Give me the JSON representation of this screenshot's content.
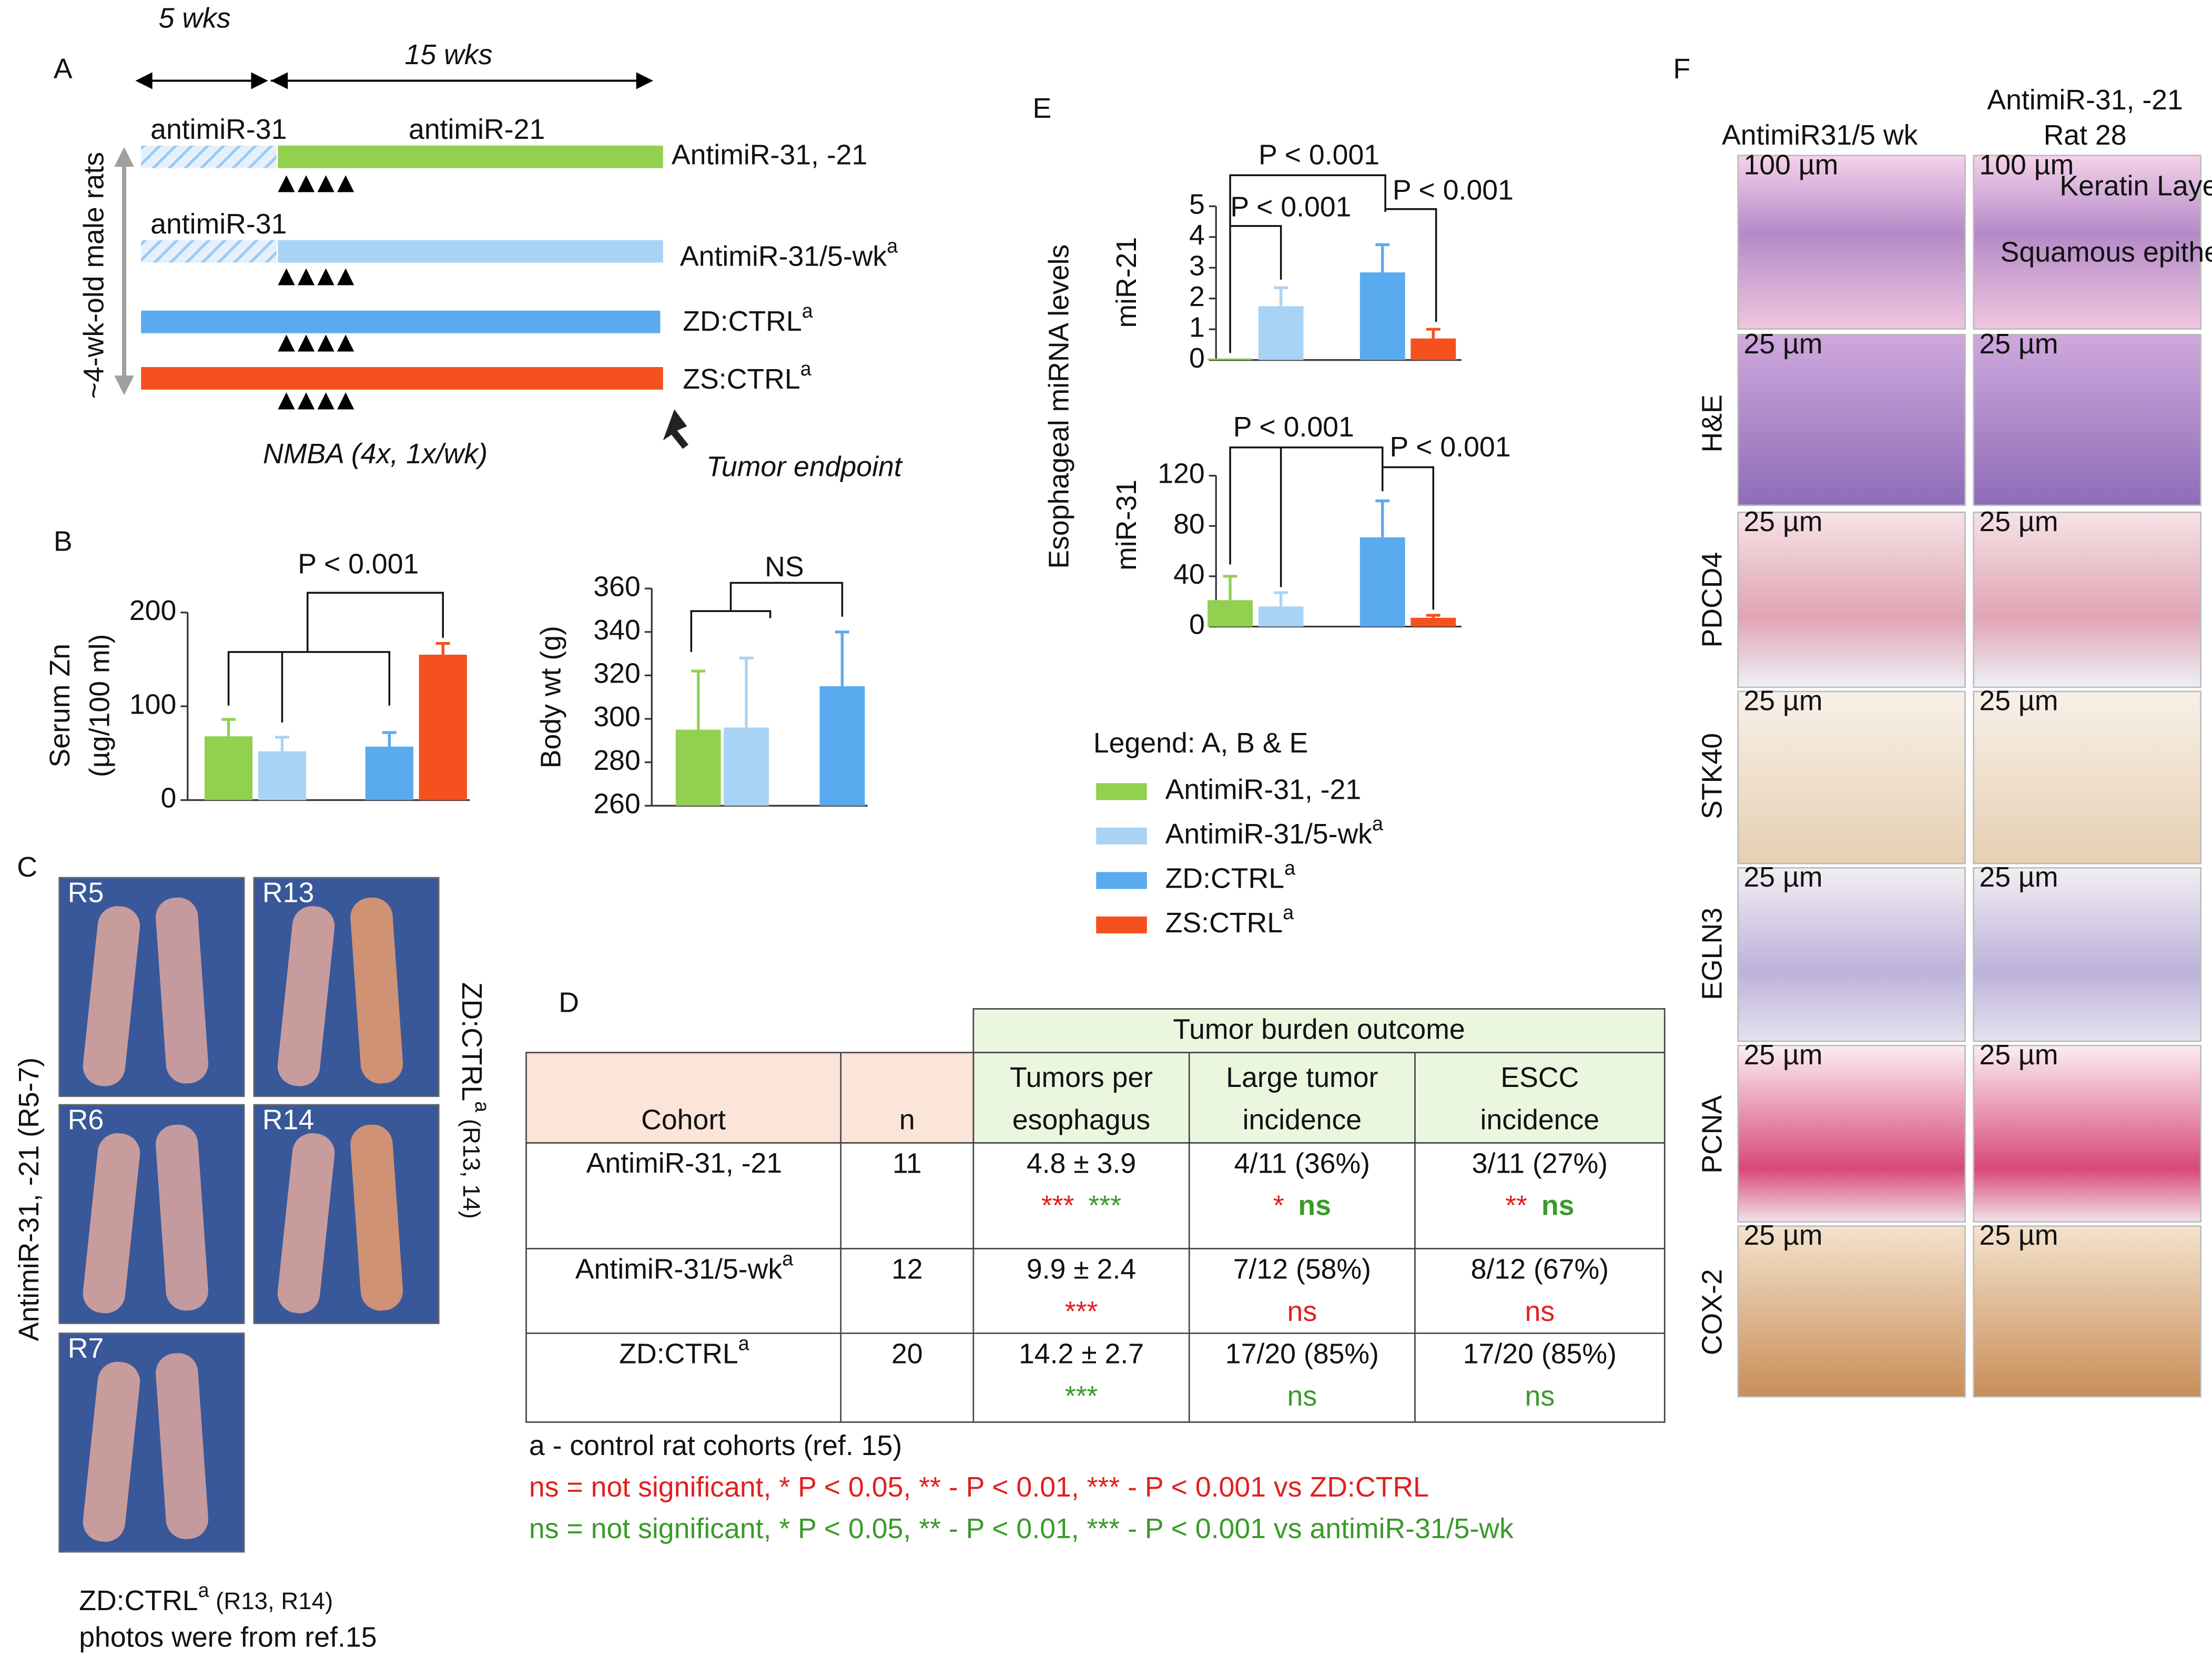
{
  "panel_labels": [
    "A",
    "B",
    "C",
    "D",
    "E",
    "F"
  ],
  "timeline": {
    "durations": [
      "5 wks",
      "15 wks"
    ],
    "bar_labels": [
      "antimiR-31",
      "antimiR-21",
      "antimiR-31"
    ],
    "groups": [
      {
        "text": "AntimiR-31, -21"
      },
      {
        "text": "AntimiR-31/5-wk",
        "sup": "a"
      },
      {
        "text": "ZD:CTRL",
        "sup": "a"
      },
      {
        "text": "ZS:CTRL",
        "sup": "a"
      }
    ],
    "y_label": "~4-wk-old male rats",
    "treatment": "NMBA (4x, 1x/wk)",
    "endpoint": "Tumor endpoint"
  },
  "legend": {
    "title": "Legend: A, B & E",
    "items": [
      {
        "text": "AntimiR-31, -21",
        "color": "#92d050"
      },
      {
        "text": "AntimiR-31/5-wk",
        "sup": "a",
        "color": "#a9d3f5"
      },
      {
        "text": "ZD:CTRL",
        "sup": "a",
        "color": "#5aaaf0"
      },
      {
        "text": "ZS:CTRL",
        "sup": "a",
        "color": "#f4511e"
      }
    ]
  },
  "chart_data": [
    {
      "type": "bar",
      "ylabel": [
        "Serum  Zn",
        "(µg/100 ml)"
      ],
      "values": [
        68,
        52,
        57,
        155
      ],
      "errors": [
        18,
        15,
        15,
        12
      ],
      "colors": [
        "#92d050",
        "#a9d3f5",
        "#5aaaf0",
        "#f4511e"
      ],
      "ylim": [
        0,
        200
      ],
      "yticks": [
        0,
        100,
        200
      ],
      "annotations": [
        "P < 0.001"
      ]
    },
    {
      "type": "bar",
      "ylabel": "Body wt (g)",
      "values": [
        295,
        296,
        315
      ],
      "errors": [
        27,
        32,
        25
      ],
      "colors": [
        "#92d050",
        "#a9d3f5",
        "#5aaaf0"
      ],
      "ylim": [
        260,
        360
      ],
      "yticks": [
        260,
        280,
        300,
        320,
        340,
        360
      ],
      "annotations": [
        "NS"
      ]
    },
    {
      "type": "bar",
      "ylabel": "miR-21",
      "values": [
        0.05,
        1.75,
        2.85,
        0.7
      ],
      "errors": [
        null,
        0.6,
        0.9,
        0.3
      ],
      "colors": [
        "#92d050",
        "#a9d3f5",
        "#5aaaf0",
        "#f4511e"
      ],
      "ylim": [
        0,
        5
      ],
      "yticks": [
        0,
        1,
        2,
        3,
        4,
        5
      ],
      "annotations": [
        "P < 0.001",
        "P < 0.001",
        "P < 0.001"
      ]
    },
    {
      "type": "bar",
      "ylabel": "miR-31",
      "values": [
        21,
        16,
        71,
        7
      ],
      "errors": [
        19,
        11,
        29,
        2
      ],
      "colors": [
        "#92d050",
        "#a9d3f5",
        "#5aaaf0",
        "#f4511e"
      ],
      "ylim": [
        0,
        120
      ],
      "yticks": [
        0,
        40,
        80,
        120
      ],
      "annotations": [
        "P < 0.001",
        "P < 0.001"
      ]
    }
  ],
  "shared_ylabel": "Esophageal miRNA levels",
  "photos": {
    "tags": [
      "R5",
      "R13",
      "R6",
      "R14",
      "R7"
    ],
    "left_label": "AntimiR-31, -21 (R5-7)",
    "right_label": {
      "text": "ZD:CTRL",
      "sup": "a",
      "rest": " (R13, 14)"
    },
    "caption": [
      {
        "text": "ZD:CTRL",
        "sup": "a",
        "rest": " (R13, R14)"
      },
      "photos were from ref.15"
    ]
  },
  "table": {
    "group_header": "Tumor burden outcome",
    "columns": [
      [
        "Cohort"
      ],
      [
        "n"
      ],
      [
        "Tumors per",
        "esophagus"
      ],
      [
        "Large tumor",
        "incidence"
      ],
      [
        "ESCC",
        "incidence"
      ]
    ],
    "sig_colors": {
      "red": "#e02020",
      "green": "#3a9a2a"
    },
    "rows": [
      {
        "cohort": {
          "text": "AntimiR-31, -21"
        },
        "n": 11,
        "cells": [
          {
            "value": "4.8 ± 3.9",
            "marks": [
              {
                "text": "***",
                "color": "red"
              },
              {
                "text": "***",
                "color": "green"
              }
            ]
          },
          {
            "value": "4/11 (36%)",
            "marks": [
              {
                "text": "*",
                "color": "red"
              },
              {
                "text": "ns",
                "color": "green",
                "bold": true
              }
            ]
          },
          {
            "value": "3/11 (27%)",
            "marks": [
              {
                "text": "**",
                "color": "red"
              },
              {
                "text": "ns",
                "color": "green",
                "bold": true
              }
            ]
          }
        ]
      },
      {
        "cohort": {
          "text": "AntimiR-31/5-wk",
          "sup": "a"
        },
        "n": 12,
        "cells": [
          {
            "value": "9.9 ± 2.4",
            "marks": [
              {
                "text": "***",
                "color": "red"
              }
            ]
          },
          {
            "value": "7/12 (58%)",
            "marks": [
              {
                "text": "ns",
                "color": "red"
              }
            ]
          },
          {
            "value": "8/12 (67%)",
            "marks": [
              {
                "text": "ns",
                "color": "red"
              }
            ]
          }
        ]
      },
      {
        "cohort": {
          "text": "ZD:CTRL",
          "sup": "a"
        },
        "n": 20,
        "cells": [
          {
            "value": "14.2 ± 2.7",
            "marks": [
              {
                "text": "***",
                "color": "green"
              }
            ]
          },
          {
            "value": "17/20 (85%)",
            "marks": [
              {
                "text": "ns",
                "color": "green"
              }
            ]
          },
          {
            "value": "17/20 (85%)",
            "marks": [
              {
                "text": "ns",
                "color": "green"
              }
            ]
          }
        ]
      }
    ],
    "footnotes": [
      {
        "text": "a - control rat cohorts (ref. 15)"
      },
      {
        "text": "ns = not significant, * P < 0.05, ** - P <  0.01, *** - P < 0.001 vs ZD:CTRL",
        "color": "red"
      },
      {
        "text": "ns = not significant, * P < 0.05, ** - P <  0.01, *** - P < 0.001 vs antimiR-31/5-wk",
        "color": "green"
      }
    ]
  },
  "histology": {
    "columns": [
      [
        "AntimiR31/5 wk"
      ],
      [
        "AntimiR-31, -21",
        "Rat 28"
      ]
    ],
    "rows": [
      "H&E",
      "PDCD4",
      "STK40",
      "EGLN3",
      "PCNA",
      "COX-2"
    ],
    "scale_bars": [
      "100 µm",
      "25 µm"
    ],
    "annotations": [
      "Keratin Layer",
      "Squamous epithelium"
    ]
  }
}
